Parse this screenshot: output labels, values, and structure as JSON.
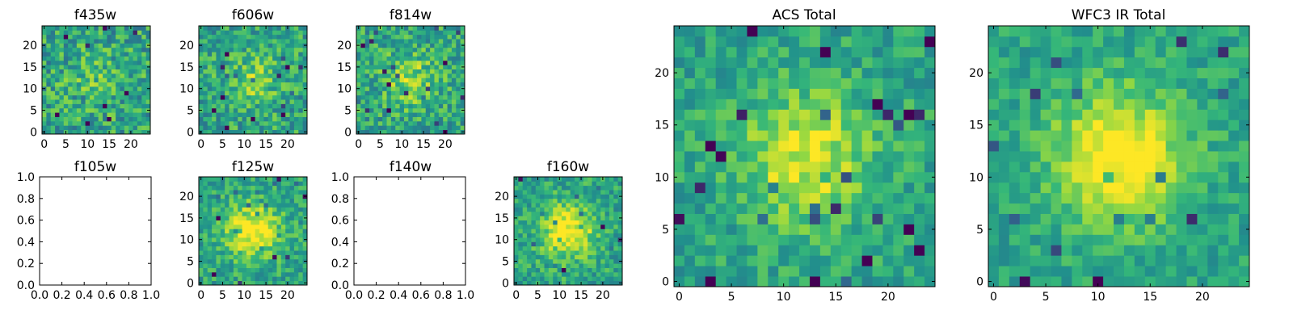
{
  "colormap": [
    "#440154",
    "#31688e",
    "#21918c",
    "#35b779",
    "#90d743",
    "#fde725"
  ],
  "chart_data": [
    {
      "type": "heatmap",
      "title": "f435w",
      "size": 25,
      "seed": 11,
      "peak": 0.15,
      "noise": 0.55,
      "xticks": [
        0,
        5,
        10,
        15,
        20
      ],
      "yticks": [
        0,
        5,
        10,
        15,
        20
      ],
      "xlim": [
        -0.5,
        24.5
      ],
      "ylim": [
        -0.5,
        24.5
      ]
    },
    {
      "type": "heatmap",
      "title": "f606w",
      "size": 25,
      "seed": 23,
      "peak": 0.25,
      "noise": 0.5,
      "xticks": [
        0,
        5,
        10,
        15,
        20
      ],
      "yticks": [
        0,
        5,
        10,
        15,
        20
      ],
      "xlim": [
        -0.5,
        24.5
      ],
      "ylim": [
        -0.5,
        24.5
      ]
    },
    {
      "type": "heatmap",
      "title": "f814w",
      "size": 25,
      "seed": 37,
      "peak": 0.3,
      "noise": 0.5,
      "xticks": [
        0,
        5,
        10,
        15,
        20
      ],
      "yticks": [
        0,
        5,
        10,
        15,
        20
      ],
      "xlim": [
        -0.5,
        24.5
      ],
      "ylim": [
        -0.5,
        24.5
      ]
    },
    {
      "type": "empty",
      "title": "f105w",
      "xticks": [
        "0.0",
        "0.2",
        "0.4",
        "0.6",
        "0.8",
        "1.0"
      ],
      "yticks": [
        "0.0",
        "0.2",
        "0.4",
        "0.6",
        "0.8",
        "1.0"
      ],
      "xlim": [
        0,
        1
      ],
      "ylim": [
        0,
        1
      ]
    },
    {
      "type": "heatmap",
      "title": "f125w",
      "size": 25,
      "seed": 41,
      "peak": 0.55,
      "noise": 0.4,
      "xticks": [
        0,
        5,
        10,
        15,
        20
      ],
      "yticks": [
        0,
        5,
        10,
        15,
        20
      ],
      "xlim": [
        -0.5,
        24.5
      ],
      "ylim": [
        -0.5,
        24.5
      ]
    },
    {
      "type": "empty",
      "title": "f140w",
      "xticks": [
        "0.0",
        "0.2",
        "0.4",
        "0.6",
        "0.8",
        "1.0"
      ],
      "yticks": [
        "0.0",
        "0.2",
        "0.4",
        "0.6",
        "0.8",
        "1.0"
      ],
      "xlim": [
        0,
        1
      ],
      "ylim": [
        0,
        1
      ]
    },
    {
      "type": "heatmap",
      "title": "f160w",
      "size": 25,
      "seed": 53,
      "peak": 0.55,
      "noise": 0.4,
      "xticks": [
        0,
        5,
        10,
        15,
        20
      ],
      "yticks": [
        0,
        5,
        10,
        15,
        20
      ],
      "xlim": [
        -0.5,
        24.5
      ],
      "ylim": [
        -0.5,
        24.5
      ]
    },
    {
      "type": "heatmap",
      "title": "ACS Total",
      "size": 25,
      "seed": 67,
      "peak": 0.45,
      "noise": 0.35,
      "xticks": [
        0,
        5,
        10,
        15,
        20
      ],
      "yticks": [
        0,
        5,
        10,
        15,
        20
      ],
      "xlim": [
        -0.5,
        24.5
      ],
      "ylim": [
        -0.5,
        24.5
      ]
    },
    {
      "type": "heatmap",
      "title": "WFC3 IR Total",
      "size": 25,
      "seed": 79,
      "peak": 0.6,
      "noise": 0.3,
      "xticks": [
        0,
        5,
        10,
        15,
        20
      ],
      "yticks": [
        0,
        5,
        10,
        15,
        20
      ],
      "xlim": [
        -0.5,
        24.5
      ],
      "ylim": [
        -0.5,
        24.5
      ]
    }
  ]
}
